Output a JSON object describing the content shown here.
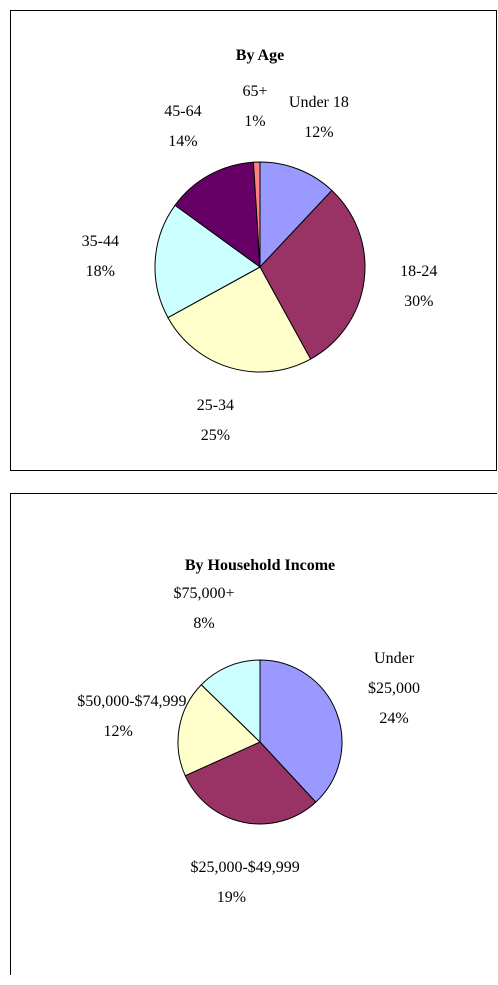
{
  "chart_data": [
    {
      "type": "pie",
      "title": "By Age",
      "categories": [
        "Under 18",
        "18-24",
        "25-34",
        "35-44",
        "45-64",
        "65+"
      ],
      "values": [
        12,
        30,
        25,
        18,
        14,
        1
      ],
      "value_labels": [
        "12%",
        "30%",
        "25%",
        "18%",
        "14%",
        "1%"
      ],
      "colors": [
        "#9999ff",
        "#993366",
        "#ffffcc",
        "#ccffff",
        "#660066",
        "#ff8080"
      ]
    },
    {
      "type": "pie",
      "title": "By Household Income",
      "categories": [
        "Under $25,000",
        "$25,000-$49,999",
        "$50,000-$74,999",
        "$75,000+"
      ],
      "values": [
        24,
        19,
        12,
        8
      ],
      "value_labels": [
        "24%",
        "19%",
        "12%",
        "8%"
      ],
      "colors": [
        "#9999ff",
        "#993366",
        "#ffffcc",
        "#ccffff"
      ]
    }
  ]
}
